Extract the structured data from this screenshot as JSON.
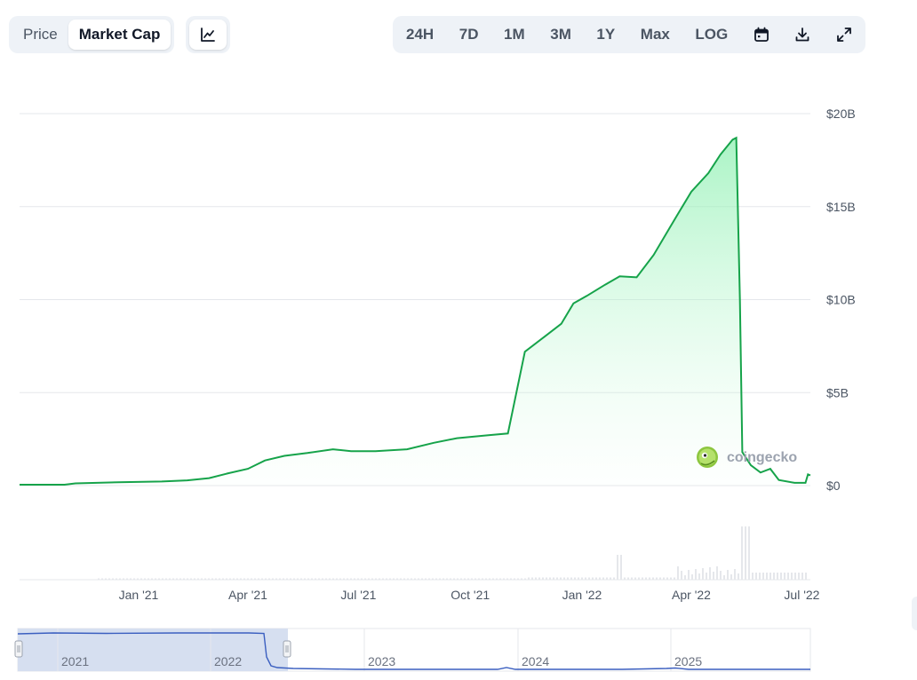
{
  "toolbar": {
    "tabs": [
      {
        "label": "Price",
        "active": false
      },
      {
        "label": "Market Cap",
        "active": true
      }
    ],
    "chart_icon": "line-chart-icon",
    "ranges": [
      "24H",
      "7D",
      "1M",
      "3M",
      "1Y",
      "Max",
      "LOG"
    ],
    "icons": [
      "calendar-icon",
      "download-icon",
      "expand-icon"
    ]
  },
  "watermark": {
    "text": "coingecko"
  },
  "colors": {
    "line": "#16a34a",
    "fill_top": "#86efac",
    "grid": "#e5e7eb",
    "navigator_line": "#3b5fc0",
    "navigator_mask": "#d6dff0"
  },
  "chart_data": {
    "type": "area",
    "title": "",
    "xlabel": "",
    "ylabel": "",
    "x_tick_labels": [
      "Jan '21",
      "Apr '21",
      "Jul '21",
      "Oct '21",
      "Jan '22",
      "Apr '22",
      "Jul '22"
    ],
    "y_tick_labels": [
      "$20B",
      "$15B",
      "$10B",
      "$5B",
      "$0"
    ],
    "y_ticks": [
      20,
      15,
      10,
      5,
      0
    ],
    "ylim": [
      0,
      20
    ],
    "y_unit": "billion USD",
    "grid": true,
    "series": [
      {
        "values_billions": [
          [
            "2020-09-25",
            0.05
          ],
          [
            "2020-11-01",
            0.05
          ],
          [
            "2020-11-10",
            0.12
          ],
          [
            "2020-12-15",
            0.18
          ],
          [
            "2021-01-20",
            0.22
          ],
          [
            "2021-02-10",
            0.28
          ],
          [
            "2021-02-28",
            0.4
          ],
          [
            "2021-03-15",
            0.65
          ],
          [
            "2021-04-01",
            0.9
          ],
          [
            "2021-04-15",
            1.35
          ],
          [
            "2021-05-01",
            1.6
          ],
          [
            "2021-05-20",
            1.75
          ],
          [
            "2021-06-10",
            1.95
          ],
          [
            "2021-06-25",
            1.85
          ],
          [
            "2021-07-15",
            1.85
          ],
          [
            "2021-08-10",
            1.95
          ],
          [
            "2021-09-01",
            2.3
          ],
          [
            "2021-09-20",
            2.55
          ],
          [
            "2021-10-15",
            2.7
          ],
          [
            "2021-11-01",
            2.8
          ],
          [
            "2021-11-15",
            7.2
          ],
          [
            "2021-12-01",
            8.0
          ],
          [
            "2021-12-15",
            8.7
          ],
          [
            "2021-12-25",
            9.8
          ],
          [
            "2022-01-05",
            10.2
          ],
          [
            "2022-01-20",
            10.8
          ],
          [
            "2022-02-01",
            11.25
          ],
          [
            "2022-02-15",
            11.2
          ],
          [
            "2022-03-01",
            12.4
          ],
          [
            "2022-03-20",
            14.5
          ],
          [
            "2022-04-01",
            15.8
          ],
          [
            "2022-04-15",
            16.8
          ],
          [
            "2022-04-25",
            17.8
          ],
          [
            "2022-05-05",
            18.6
          ],
          [
            "2022-05-08",
            18.7
          ],
          [
            "2022-05-11",
            10.0
          ],
          [
            "2022-05-13",
            1.8
          ],
          [
            "2022-05-20",
            1.1
          ],
          [
            "2022-05-28",
            0.7
          ],
          [
            "2022-06-05",
            0.9
          ],
          [
            "2022-06-12",
            0.3
          ],
          [
            "2022-06-25",
            0.15
          ],
          [
            "2022-07-04",
            0.15
          ],
          [
            "2022-07-06",
            0.6
          ],
          [
            "2022-07-08",
            0.55
          ]
        ]
      }
    ],
    "navigator": {
      "year_labels": [
        "2021",
        "2022",
        "2023",
        "2024",
        "2025"
      ]
    }
  }
}
